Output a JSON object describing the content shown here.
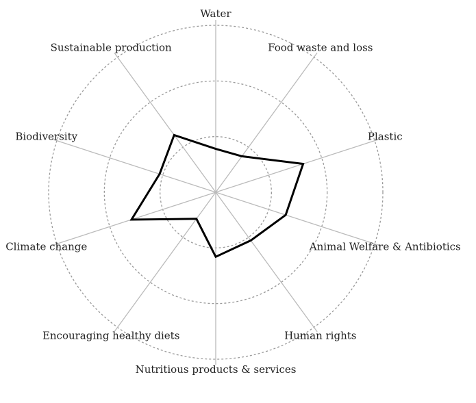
{
  "chart_data": {
    "type": "radar",
    "categories": [
      "Water",
      "Food waste and loss",
      "Plastic",
      "Animal Welfare & Antibiotics",
      "Human rights",
      "Nutritious products & services",
      "Encouraging healthy diets",
      "Climate change",
      "Biodiversity",
      "Sustainable production"
    ],
    "values": [
      0.78,
      0.8,
      1.65,
      1.32,
      1.07,
      1.16,
      0.59,
      1.59,
      1.06,
      1.27
    ],
    "color": "#000000",
    "ylim": [
      0,
      3
    ],
    "yticks": [
      1,
      2,
      3
    ],
    "grid": true
  }
}
